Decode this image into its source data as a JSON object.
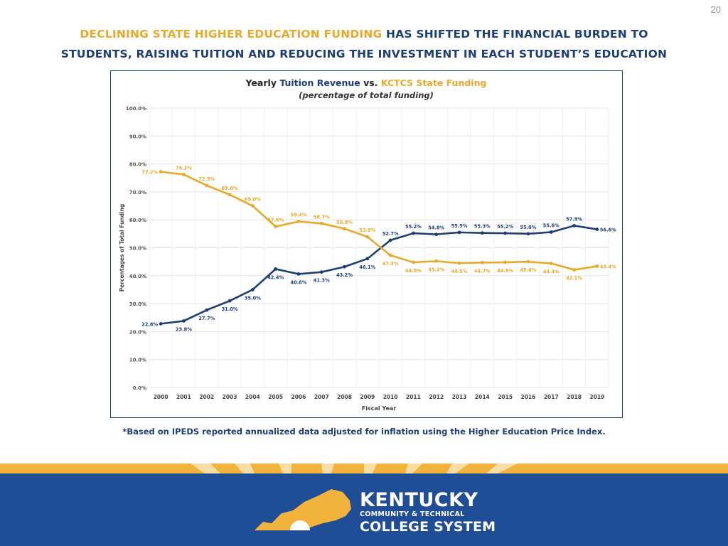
{
  "page_number": "20",
  "headline": {
    "highlight": "DECLINING STATE HIGHER EDUCATION FUNDING",
    "line1_rest": " HAS SHIFTED THE FINANCIAL BURDEN TO",
    "line2": "STUDENTS, RAISING TUITION AND REDUCING THE INVESTMENT IN EACH STUDENT’S EDUCATION"
  },
  "footnote": "*Based on IPEDS reported annualized data adjusted for inflation using the Higher Education Price Index.",
  "logo": {
    "line1": "KENTUCKY",
    "line2": "COMMUNITY & TECHNICAL",
    "line3": "COLLEGE SYSTEM"
  },
  "colors": {
    "navy": "#1f3f73",
    "gold": "#e8a92a",
    "footer_blue": "#1f4e96",
    "stripe_gold": "#f2b33d"
  },
  "chart_data": {
    "type": "line",
    "title_parts": [
      "Yearly ",
      "Tuition Revenue",
      " vs. ",
      "KCTCS State Funding"
    ],
    "subtitle": "(percentage of total funding)",
    "xlabel": "Fiscal Year",
    "ylabel": "Percentages of Total Funding",
    "ylim": [
      0,
      100
    ],
    "yticks": [
      "0.0%",
      "10.0%",
      "20.0%",
      "30.0%",
      "40.0%",
      "50.0%",
      "60.0%",
      "70.0%",
      "80.0%",
      "90.0%",
      "100.0%"
    ],
    "grid": true,
    "legend": "none (series named in title)",
    "x": [
      "2000",
      "2001",
      "2002",
      "2003",
      "2004",
      "2005",
      "2006",
      "2007",
      "2008",
      "2009",
      "2010",
      "2011",
      "2012",
      "2013",
      "2014",
      "2015",
      "2016",
      "2017",
      "2018",
      "2019"
    ],
    "series": [
      {
        "name": "Tuition Revenue",
        "color": "#1f3f73",
        "values": [
          22.8,
          23.8,
          27.7,
          31.0,
          35.0,
          42.4,
          40.6,
          41.3,
          43.2,
          46.1,
          52.7,
          55.2,
          54.8,
          55.5,
          55.3,
          55.2,
          55.0,
          55.6,
          57.9,
          56.6
        ],
        "labels": [
          "22.8%",
          "23.8%",
          "27.7%",
          "31.0%",
          "35.0%",
          "42.4%",
          "40.6%",
          "41.3%",
          "43.2%",
          "46.1%",
          "52.7%",
          "55.2%",
          "54.8%",
          "55.5%",
          "55.3%",
          "55.2%",
          "55.0%",
          "55.6%",
          "57.9%",
          "56.6%"
        ]
      },
      {
        "name": "KCTCS State Funding",
        "color": "#e8a92a",
        "values": [
          77.2,
          76.2,
          72.3,
          69.0,
          65.0,
          57.6,
          59.4,
          58.7,
          56.8,
          53.9,
          47.3,
          44.8,
          45.2,
          44.5,
          44.7,
          44.8,
          45.0,
          44.4,
          42.1,
          43.4
        ],
        "labels": [
          "77.2%",
          "76.2%",
          "72.3%",
          "69.0%",
          "65.0%",
          "57.6%",
          "59.4%",
          "58.7%",
          "56.8%",
          "53.9%",
          "47.3%",
          "44.8%",
          "45.2%",
          "44.5%",
          "44.7%",
          "44.8%",
          "45.0%",
          "44.4%",
          "42.1%",
          "43.4%"
        ]
      }
    ]
  }
}
